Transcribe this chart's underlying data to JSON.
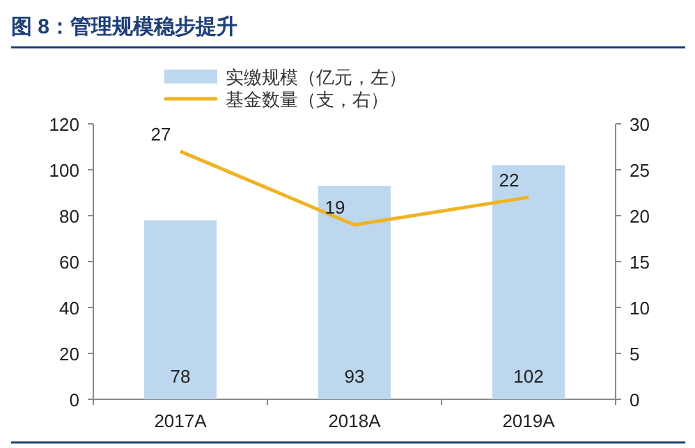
{
  "chart_data": {
    "type": "bar",
    "title": "图 8：管理规模稳步提升",
    "categories": [
      "2017A",
      "2018A",
      "2019A"
    ],
    "series": [
      {
        "name": "实缴规模（亿元，左）",
        "color": "#bdd7ee",
        "values": [
          78,
          93,
          102
        ]
      },
      {
        "name": "基金数量（支，右）",
        "type": "line",
        "axis": "y2",
        "color": "#f0b323",
        "values": [
          27,
          19,
          22
        ]
      }
    ],
    "ylim": [
      0,
      120
    ],
    "yticks": [
      0,
      20,
      40,
      60,
      80,
      100,
      120
    ],
    "y2lim": [
      0,
      30
    ],
    "y2ticks": [
      0,
      5,
      10,
      15,
      20,
      25,
      30
    ],
    "legend": "top",
    "data_labels": true,
    "grid": false
  }
}
